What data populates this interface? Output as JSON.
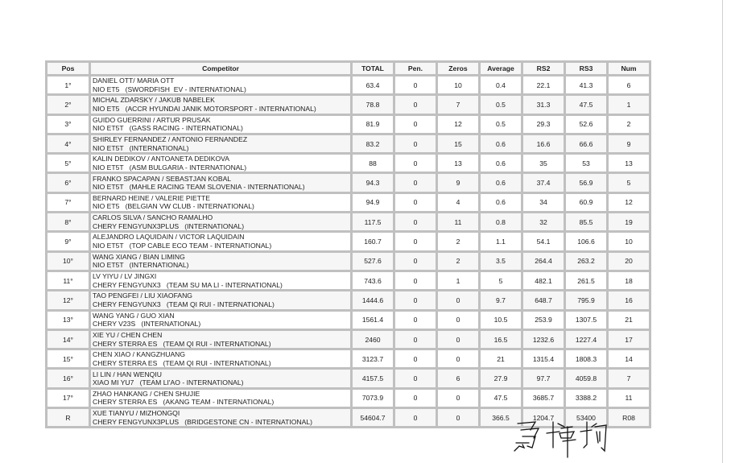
{
  "table": {
    "headers": [
      "Pos",
      "Competitor",
      "TOTAL",
      "Pen.",
      "Zeros",
      "Average",
      "RS2",
      "RS3",
      "Num"
    ],
    "rows": [
      {
        "pos": "1°",
        "crew": "DANIEL OTT/ MARIA OTT",
        "car": "NIO ET5   (SWORDFISH  EV - INTERNATIONAL)",
        "total": "63.4",
        "pen": "0",
        "zeros": "10",
        "average": "0.4",
        "rs2": "22.1",
        "rs3": "41.3",
        "num": "6"
      },
      {
        "pos": "2°",
        "crew": "MICHAL ZDARSKY / JAKUB NABELEK",
        "car": "NIO ET5   (ACCR HYUNDAI JANIK MOTORSPORT - INTERNATIONAL)",
        "total": "78.8",
        "pen": "0",
        "zeros": "7",
        "average": "0.5",
        "rs2": "31.3",
        "rs3": "47.5",
        "num": "1"
      },
      {
        "pos": "3°",
        "crew": "GUIDO GUERRINI / ARTUR PRUSAK",
        "car": "NIO ET5T   (GASS RACING - INTERNATIONAL)",
        "total": "81.9",
        "pen": "0",
        "zeros": "12",
        "average": "0.5",
        "rs2": "29.3",
        "rs3": "52.6",
        "num": "2"
      },
      {
        "pos": "4°",
        "crew": "SHIRLEY FERNANDEZ / ANTONIO FERNANDEZ",
        "car": "NIO ET5T   (INTERNATIONAL)",
        "total": "83.2",
        "pen": "0",
        "zeros": "15",
        "average": "0.6",
        "rs2": "16.6",
        "rs3": "66.6",
        "num": "9"
      },
      {
        "pos": "5°",
        "crew": "KALIN DEDIKOV / ANTOANETA DEDIKOVA",
        "car": "NIO ET5T   (ASM BULGARIA - INTERNATIONAL)",
        "total": "88",
        "pen": "0",
        "zeros": "13",
        "average": "0.6",
        "rs2": "35",
        "rs3": "53",
        "num": "13"
      },
      {
        "pos": "6°",
        "crew": "FRANKO SPACAPAN / SEBASTJAN KOBAL",
        "car": "NIO ET5T   (MAHLE RACING TEAM SLOVENIA - INTERNATIONAL)",
        "total": "94.3",
        "pen": "0",
        "zeros": "9",
        "average": "0.6",
        "rs2": "37.4",
        "rs3": "56.9",
        "num": "5"
      },
      {
        "pos": "7°",
        "crew": "BERNARD HEINE / VALERIE PIETTE",
        "car": "NIO ET5   (BELGIAN VW CLUB - INTERNATIONAL)",
        "total": "94.9",
        "pen": "0",
        "zeros": "4",
        "average": "0.6",
        "rs2": "34",
        "rs3": "60.9",
        "num": "12"
      },
      {
        "pos": "8°",
        "crew": "CARLOS SILVA / SANCHO RAMALHO",
        "car": "CHERY FENGYUNX3PLUS   (INTERNATIONAL)",
        "total": "117.5",
        "pen": "0",
        "zeros": "11",
        "average": "0.8",
        "rs2": "32",
        "rs3": "85.5",
        "num": "19"
      },
      {
        "pos": "9°",
        "crew": "ALEJANDRO LAQUIDAIN / VICTOR LAQUIDAIN",
        "car": "NIO ET5T   (TOP CABLE ECO TEAM - INTERNATIONAL)",
        "total": "160.7",
        "pen": "0",
        "zeros": "2",
        "average": "1.1",
        "rs2": "54.1",
        "rs3": "106.6",
        "num": "10"
      },
      {
        "pos": "10°",
        "crew": "WANG XIANG / BIAN LIMING",
        "car": "NIO ET5T   (INTERNATIONAL)",
        "total": "527.6",
        "pen": "0",
        "zeros": "2",
        "average": "3.5",
        "rs2": "264.4",
        "rs3": "263.2",
        "num": "20"
      },
      {
        "pos": "11°",
        "crew": "LV YIYU / LV JINGXI",
        "car": "CHERY FENGYUNX3   (TEAM SU MA LI - INTERNATIONAL)",
        "total": "743.6",
        "pen": "0",
        "zeros": "1",
        "average": "5",
        "rs2": "482.1",
        "rs3": "261.5",
        "num": "18"
      },
      {
        "pos": "12°",
        "crew": "TAO PENGFEI / LIU XIAOFANG",
        "car": "CHERY FENGYUNX3   (TEAM QI RUI - INTERNATIONAL)",
        "total": "1444.6",
        "pen": "0",
        "zeros": "0",
        "average": "9.7",
        "rs2": "648.7",
        "rs3": "795.9",
        "num": "16"
      },
      {
        "pos": "13°",
        "crew": "WANG YANG / GUO XIAN",
        "car": "CHERY V23S   (INTERNATIONAL)",
        "total": "1561.4",
        "pen": "0",
        "zeros": "0",
        "average": "10.5",
        "rs2": "253.9",
        "rs3": "1307.5",
        "num": "21"
      },
      {
        "pos": "14°",
        "crew": "XIE YU / CHEN CHEN",
        "car": "CHERY STERRA ES   (TEAM QI RUI - INTERNATIONAL)",
        "total": "2460",
        "pen": "0",
        "zeros": "0",
        "average": "16.5",
        "rs2": "1232.6",
        "rs3": "1227.4",
        "num": "17"
      },
      {
        "pos": "15°",
        "crew": "CHEN XIAO / KANGZHUANG",
        "car": "CHERY STERRA ES   (TEAM QI RUI - INTERNATIONAL)",
        "total": "3123.7",
        "pen": "0",
        "zeros": "0",
        "average": "21",
        "rs2": "1315.4",
        "rs3": "1808.3",
        "num": "14"
      },
      {
        "pos": "16°",
        "crew": "LI LIN / HAN WENQIU",
        "car": "XIAO MI YU7   (TEAM LI'AO - INTERNATIONAL)",
        "total": "4157.5",
        "pen": "0",
        "zeros": "6",
        "average": "27.9",
        "rs2": "97.7",
        "rs3": "4059.8",
        "num": "7"
      },
      {
        "pos": "17°",
        "crew": "ZHAO HANKANG / CHEN SHUJIE",
        "car": "CHERY STERRA ES   (AKANG TEAM - INTERNATIONAL)",
        "total": "7073.9",
        "pen": "0",
        "zeros": "0",
        "average": "47.5",
        "rs2": "3685.7",
        "rs3": "3388.2",
        "num": "11"
      },
      {
        "pos": "R",
        "crew": "XUE TIANYU / MIZHONGQI",
        "car": "CHERY FENGYUNX3PLUS   (BRIDGESTONE CN - INTERNATIONAL)",
        "total": "54604.7",
        "pen": "0",
        "zeros": "0",
        "average": "366.5",
        "rs2": "1204.7",
        "rs3": "53400",
        "num": "R08"
      }
    ]
  },
  "colors": {
    "border": "#c0c0c0",
    "row_alt": "#f6f6f6",
    "text": "#222222"
  },
  "signature": {
    "type": "handwritten-signature"
  }
}
